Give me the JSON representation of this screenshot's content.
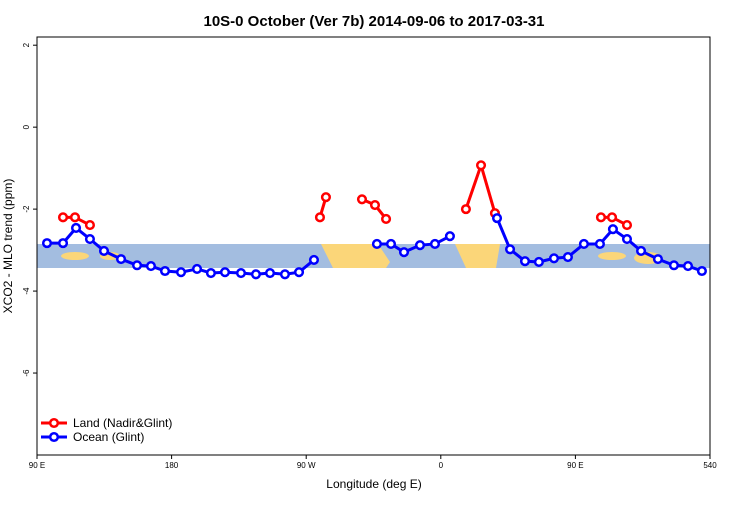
{
  "chart_data": {
    "type": "line",
    "title": "10S-0 October (Ver 7b)   2014-09-06 to 2017-03-31",
    "xlabel": "Longitude (deg E)",
    "ylabel": "XCO2 - MLO trend (ppm)",
    "xlim": [
      90,
      540
    ],
    "ylim": [
      -8,
      2.2
    ],
    "xticks": [
      {
        "value": 90,
        "label": "90 E"
      },
      180,
      {
        "value": 270,
        "label": "90 W"
      },
      {
        "value": 360,
        "label": "0"
      },
      {
        "value": 450,
        "label": "90 E"
      },
      540
    ],
    "yticks": [
      2,
      0,
      -2,
      -4,
      -6
    ],
    "legend": "bottom-left",
    "series": [
      {
        "name": "Land (Nadir&Glint)",
        "color": "#ff0000",
        "x": [
          107.4,
          115.4,
          125.4,
          null,
          279.2,
          283.2,
          null,
          307.3,
          316.0,
          323.4,
          null,
          376.8,
          386.9,
          396.2,
          null,
          467.1,
          474.5,
          484.5
        ],
        "values": [
          -2.2,
          -2.2,
          -2.39,
          null,
          -2.2,
          -1.71,
          null,
          -1.76,
          -1.9,
          -2.24,
          null,
          -2.0,
          -0.93,
          -2.1,
          null,
          -2.2,
          -2.2,
          -2.39
        ]
      },
      {
        "name": "Ocean (Glint)",
        "color": "#0000ff",
        "x": [
          96.7,
          107.4,
          116.1,
          125.4,
          134.8,
          146.2,
          156.9,
          166.2,
          175.6,
          186.3,
          197.0,
          206.3,
          215.7,
          226.4,
          236.4,
          245.8,
          255.8,
          265.2,
          275.2,
          null,
          317.3,
          326.7,
          335.4,
          346.1,
          356.1,
          366.1,
          null,
          397.6,
          406.3,
          416.3,
          425.6,
          435.7,
          445.0,
          455.7,
          466.4,
          475.1,
          484.5,
          493.9,
          505.2,
          515.9,
          525.3,
          534.6
        ],
        "values": [
          -2.83,
          -2.83,
          -2.46,
          -2.73,
          -3.02,
          -3.22,
          -3.37,
          -3.39,
          -3.51,
          -3.54,
          -3.46,
          -3.56,
          -3.54,
          -3.56,
          -3.59,
          -3.56,
          -3.59,
          -3.54,
          -3.24,
          null,
          -2.85,
          -2.85,
          -3.05,
          -2.88,
          -2.85,
          -2.66,
          null,
          -2.22,
          -2.98,
          -3.27,
          -3.29,
          -3.2,
          -3.17,
          -2.85,
          -2.85,
          -2.49,
          -2.73,
          -3.02,
          -3.22,
          -3.37,
          -3.39,
          -3.51
        ]
      }
    ]
  }
}
